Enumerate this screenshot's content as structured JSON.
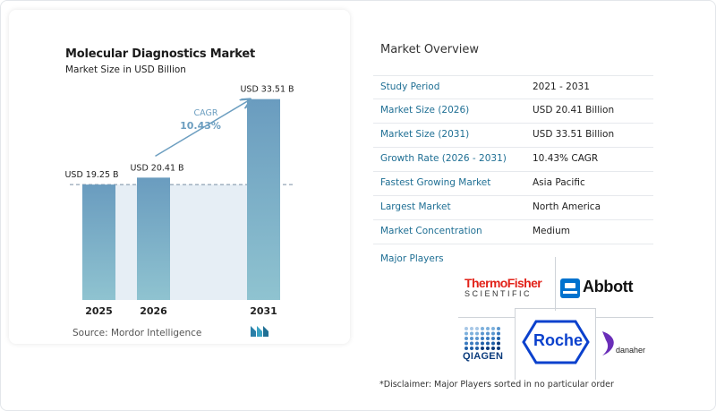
{
  "chart_data": {
    "type": "bar",
    "title": "Molecular Diagnostics Market",
    "subtitle": "Market Size in USD Billion",
    "categories": [
      "2025",
      "2026",
      "2031"
    ],
    "values": [
      19.25,
      20.41,
      33.51
    ],
    "value_labels": [
      "USD 19.25 B",
      "USD 20.41 B",
      "USD 33.51 B"
    ],
    "cagr_label": "CAGR",
    "cagr_value": "10.43%",
    "ylim": [
      0,
      36
    ],
    "colors": {
      "bar_top": "#6a9cbf",
      "bar_bottom": "#8fc3d0",
      "shade": "#e6eef5",
      "arrow": "#6c9ec0",
      "cagr_text": "#6c9ec0"
    }
  },
  "source": "Source:  Mordor Intelligence",
  "overview": {
    "title": "Market Overview",
    "rows": [
      {
        "label": "Study Period",
        "value": "2021 - 2031"
      },
      {
        "label": "Market Size (2026)",
        "value": "USD 20.41 Billion"
      },
      {
        "label": "Market Size (2031)",
        "value": "USD 33.51 Billion"
      },
      {
        "label": "Growth Rate (2026 - 2031)",
        "value": "10.43% CAGR"
      },
      {
        "label": "Fastest Growing Market",
        "value": "Asia Pacific"
      },
      {
        "label": "Largest Market",
        "value": "North America"
      },
      {
        "label": "Market Concentration",
        "value": "Medium"
      }
    ]
  },
  "players_label": "Major Players",
  "logos": {
    "thermo_line1": "ThermoFisher",
    "thermo_line2": "SCIENTIFIC",
    "abbott": "Abbott",
    "qiagen": "QIAGEN",
    "roche": "Roche",
    "danaher": "danaher"
  },
  "disclaimer": "*Disclaimer: Major Players sorted in no particular order"
}
